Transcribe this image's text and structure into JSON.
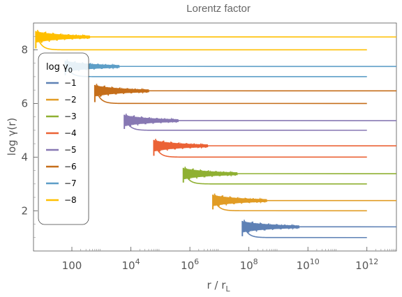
{
  "chart_data": {
    "type": "line",
    "title": "Lorentz factor",
    "xlabel_main": "r / r",
    "xlabel_sub": "L",
    "ylabel": "log γ(r)",
    "x_scale": "log",
    "xlim": [
      5,
      10000000000000.0
    ],
    "ylim": [
      0.5,
      9.0
    ],
    "x_ticks": [
      {
        "value": 100,
        "base": "100",
        "exp": ""
      },
      {
        "value": 10000,
        "base": "10",
        "exp": "4"
      },
      {
        "value": 1000000,
        "base": "10",
        "exp": "6"
      },
      {
        "value": 100000000,
        "base": "10",
        "exp": "8"
      },
      {
        "value": 10000000000,
        "base": "10",
        "exp": "10"
      },
      {
        "value": 1000000000000,
        "base": "10",
        "exp": "12"
      }
    ],
    "y_ticks": [
      2,
      4,
      6,
      8
    ],
    "legend": {
      "title_main": "log γ",
      "title_sub": "0",
      "placement": "left"
    },
    "series": [
      {
        "name": "−1",
        "color": "#5E81B5",
        "x_start": 60000000.0,
        "osc_end": 5000000000.0,
        "upper": 1.4,
        "lower": 1.0
      },
      {
        "name": "−2",
        "color": "#E19C24",
        "x_start": 6000000.0,
        "osc_end": 400000000.0,
        "upper": 2.38,
        "lower": 2.0
      },
      {
        "name": "−3",
        "color": "#8FB032",
        "x_start": 600000.0,
        "osc_end": 40000000.0,
        "upper": 3.38,
        "lower": 3.0
      },
      {
        "name": "−4",
        "color": "#EB6235",
        "x_start": 60000.0,
        "osc_end": 4000000.0,
        "upper": 4.42,
        "lower": 4.0
      },
      {
        "name": "−5",
        "color": "#8778B3",
        "x_start": 6000.0,
        "osc_end": 400000.0,
        "upper": 5.36,
        "lower": 5.0
      },
      {
        "name": "−6",
        "color": "#C56E1A",
        "x_start": 600.0,
        "osc_end": 40000.0,
        "upper": 6.47,
        "lower": 6.0
      },
      {
        "name": "−7",
        "color": "#5D9EC7",
        "x_start": 60,
        "osc_end": 4000.0,
        "upper": 7.38,
        "lower": 7.0
      },
      {
        "name": "−8",
        "color": "#FFBF00",
        "x_start": 6,
        "osc_end": 400.0,
        "upper": 8.48,
        "lower": 8.0
      }
    ],
    "upper_end_x": 10000000000000.0,
    "lower_end_x": 1000000000000.0,
    "grid": false
  }
}
